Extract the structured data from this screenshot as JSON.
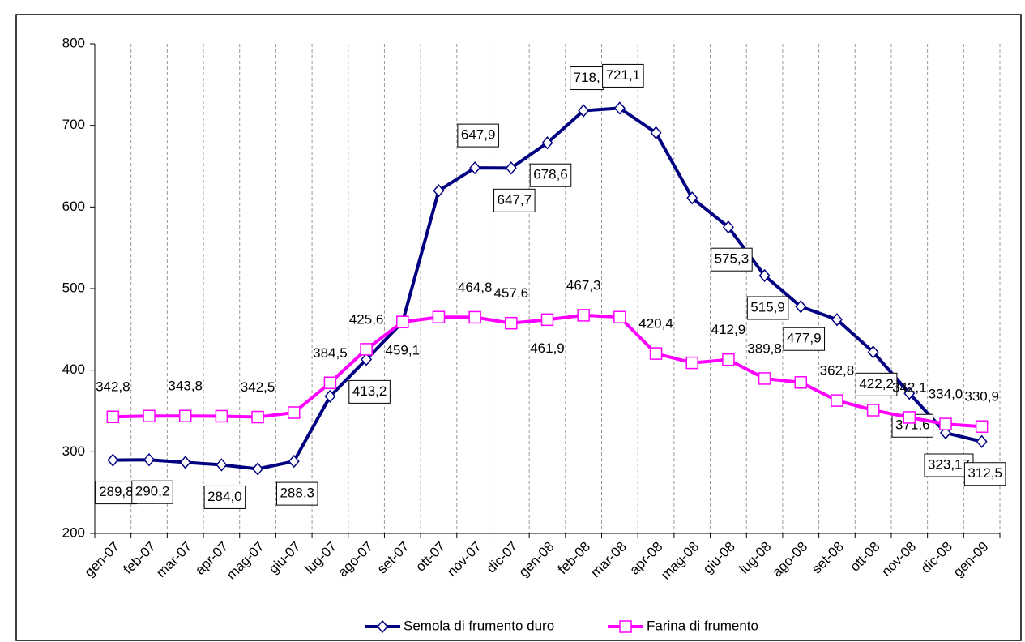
{
  "chart_data": {
    "type": "line",
    "categories": [
      "gen-07",
      "feb-07",
      "mar-07",
      "apr-07",
      "mag-07",
      "giu-07",
      "lug-07",
      "ago-07",
      "set-07",
      "ott-07",
      "nov-07",
      "dic-07",
      "gen-08",
      "feb-08",
      "mar-08",
      "apr-08",
      "mag-08",
      "giu-08",
      "lug-08",
      "ago-08",
      "set-08",
      "ott-08",
      "nov-08",
      "dic-08",
      "gen-09"
    ],
    "ylim": [
      200,
      800
    ],
    "yticks": [
      200,
      300,
      400,
      500,
      600,
      700,
      800
    ],
    "grid": true,
    "legend": "bottom",
    "series": [
      {
        "name": "Semola di frumento duro",
        "color": "#000080",
        "values": [
          289.8,
          290.2,
          287,
          284.0,
          279,
          288.3,
          368,
          413.2,
          459,
          620,
          647.9,
          647.7,
          678.6,
          718,
          721.1,
          691,
          611,
          575.3,
          515.9,
          477.9,
          462,
          422.2,
          371.6,
          323.17,
          312.5
        ],
        "value_labels": [
          "289,8",
          "290,2",
          null,
          "284,0",
          null,
          "288,3",
          null,
          "413,2",
          null,
          null,
          "647,9",
          "647,7",
          "678,6",
          "718,",
          "721,1",
          null,
          null,
          "575,3",
          "515,9",
          "477,9",
          null,
          "422,2",
          "371,6",
          "323,17",
          "312,5"
        ]
      },
      {
        "name": "Farina di frumento",
        "color": "#ff00ff",
        "values": [
          342.8,
          343.8,
          343.8,
          343.6,
          342.5,
          348,
          384.5,
          425.6,
          459.1,
          465,
          464.8,
          457.6,
          461.9,
          467.3,
          465,
          420.4,
          409,
          412.9,
          389.8,
          385,
          362.8,
          351,
          342.1,
          334.0,
          330.9
        ],
        "value_labels": [
          "342,8",
          null,
          "343,8",
          null,
          "342,5",
          null,
          "384,5",
          "425,6",
          "459,1",
          null,
          "464,8",
          "457,6",
          "461,9",
          "467,3",
          null,
          "420,4",
          null,
          "412,9",
          "389,8",
          null,
          "362,8",
          null,
          "342,1",
          "334,0",
          "330,9"
        ]
      }
    ]
  }
}
